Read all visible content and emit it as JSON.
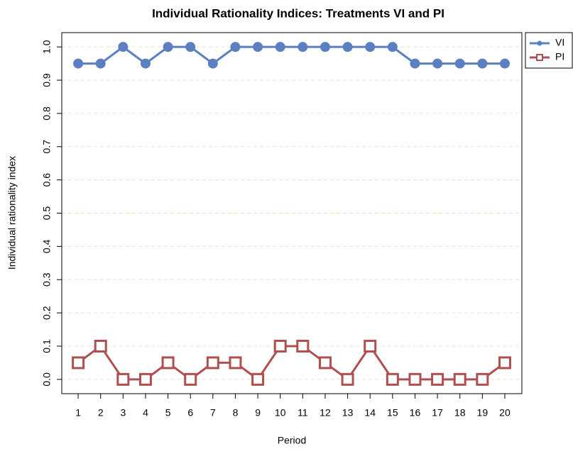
{
  "chart_data": {
    "type": "line",
    "title": "Individual Rationality Indices: Treatments VI and PI",
    "x_label": "Period",
    "y_label": "Individual rationality index",
    "x": [
      1,
      2,
      3,
      4,
      5,
      6,
      7,
      8,
      9,
      10,
      11,
      12,
      13,
      14,
      15,
      16,
      17,
      18,
      19,
      20
    ],
    "series": [
      {
        "name": "VI",
        "color": "#5b7fc0",
        "marker": "circle",
        "values": [
          0.95,
          0.95,
          1.0,
          0.95,
          1.0,
          1.0,
          0.95,
          1.0,
          1.0,
          1.0,
          1.0,
          1.0,
          1.0,
          1.0,
          1.0,
          0.95,
          0.95,
          0.95,
          0.95,
          0.95
        ]
      },
      {
        "name": "PI",
        "color": "#b04f50",
        "marker": "square",
        "values": [
          0.05,
          0.1,
          0.0,
          0.0,
          0.05,
          0.0,
          0.05,
          0.05,
          0.0,
          0.1,
          0.1,
          0.05,
          0.0,
          0.1,
          0.0,
          0.0,
          0.0,
          0.0,
          0.0,
          0.05
        ]
      }
    ],
    "xlim": [
      0.27,
      20.76
    ],
    "xticks": [
      1,
      2,
      3,
      4,
      5,
      6,
      7,
      8,
      9,
      10,
      11,
      12,
      13,
      14,
      15,
      16,
      17,
      18,
      19,
      20
    ],
    "ylim": [
      -0.043,
      1.043
    ],
    "yticks": [
      {
        "value": 0,
        "label": "0.0"
      },
      0.1,
      0.2,
      0.3,
      0.4,
      0.5,
      0.6,
      0.7,
      0.8,
      0.9,
      {
        "value": 1,
        "label": "1.0"
      }
    ],
    "grid": true,
    "legend": "top-right-outside"
  }
}
